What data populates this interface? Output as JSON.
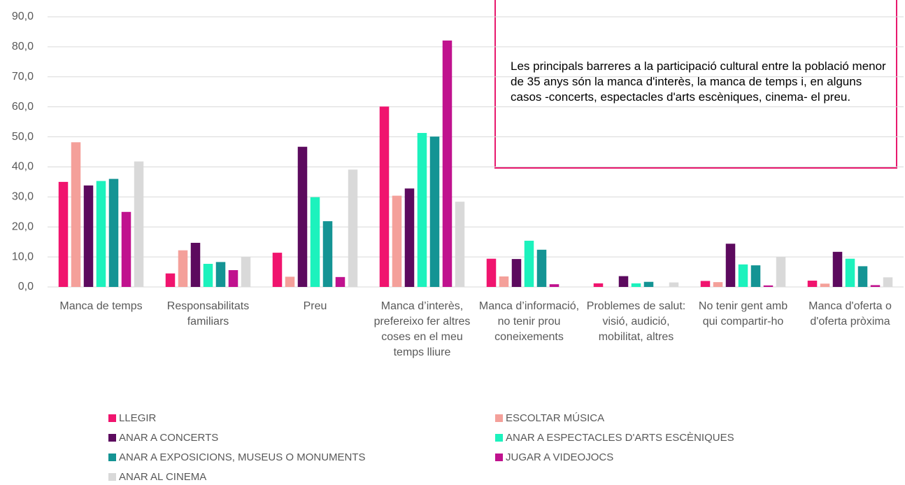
{
  "chart_data": {
    "type": "bar",
    "annotation": "Les principals barreres a la participació cultural entre la població menor de 35 anys són la manca d'interès, la manca de temps i, en alguns casos -concerts, espectacles d'arts escèniques, cinema- el preu.",
    "categories": [
      "Manca de temps",
      "Responsabilitats familiars",
      "Preu",
      "Manca d’interès, prefereixo fer altres coses en el meu temps lliure",
      "Manca d’informació, no tenir prou coneixements",
      "Problemes de salut: visió, audició, mobilitat, altres",
      "No tenir gent amb qui compartir-ho",
      "Manca d'oferta o d'oferta pròxima"
    ],
    "series": [
      {
        "name": "LLEGIR",
        "color": "#f0146e",
        "values": [
          35.0,
          4.5,
          11.4,
          60.1,
          9.4,
          1.2,
          2.0,
          2.1
        ]
      },
      {
        "name": "ESCOLTAR MÚSICA",
        "color": "#f4a09a",
        "values": [
          48.2,
          12.2,
          3.4,
          30.4,
          3.5,
          0.0,
          1.6,
          1.1
        ]
      },
      {
        "name": "ANAR A CONCERTS",
        "color": "#5c0a5e",
        "values": [
          33.8,
          14.7,
          46.7,
          32.8,
          9.3,
          3.6,
          14.4,
          11.7
        ]
      },
      {
        "name": "ANAR A ESPECTACLES D'ARTS ESCÈNIQUES",
        "color": "#1cf2bd",
        "values": [
          35.3,
          7.7,
          29.9,
          51.3,
          15.4,
          1.2,
          7.5,
          9.4
        ]
      },
      {
        "name": "ANAR A EXPOSICIONS, MUSEUS O MONUMENTS",
        "color": "#149494",
        "values": [
          36.0,
          8.3,
          21.9,
          50.1,
          12.4,
          1.7,
          7.2,
          6.9
        ]
      },
      {
        "name": "JUGAR A VIDEOJOCS",
        "color": "#c0128e",
        "values": [
          25.0,
          5.6,
          3.3,
          82.1,
          0.9,
          0.0,
          0.5,
          0.6
        ]
      },
      {
        "name": "ANAR AL CINEMA",
        "color": "#d9d9d9",
        "values": [
          41.8,
          10.0,
          39.1,
          28.4,
          0.0,
          1.5,
          10.0,
          3.2
        ]
      }
    ],
    "ylim": [
      0,
      90
    ],
    "yticks": [
      {
        "value": 0,
        "label": "0,0"
      },
      {
        "value": 10,
        "label": "10,0"
      },
      {
        "value": 20,
        "label": "20,0"
      },
      {
        "value": 30,
        "label": "30,0"
      },
      {
        "value": 40,
        "label": "40,0"
      },
      {
        "value": 50,
        "label": "50,0"
      },
      {
        "value": 60,
        "label": "60,0"
      },
      {
        "value": 70,
        "label": "70,0"
      },
      {
        "value": 80,
        "label": "80,0"
      },
      {
        "value": 90,
        "label": "90,0"
      }
    ],
    "grid": true,
    "legend": "bottom"
  }
}
